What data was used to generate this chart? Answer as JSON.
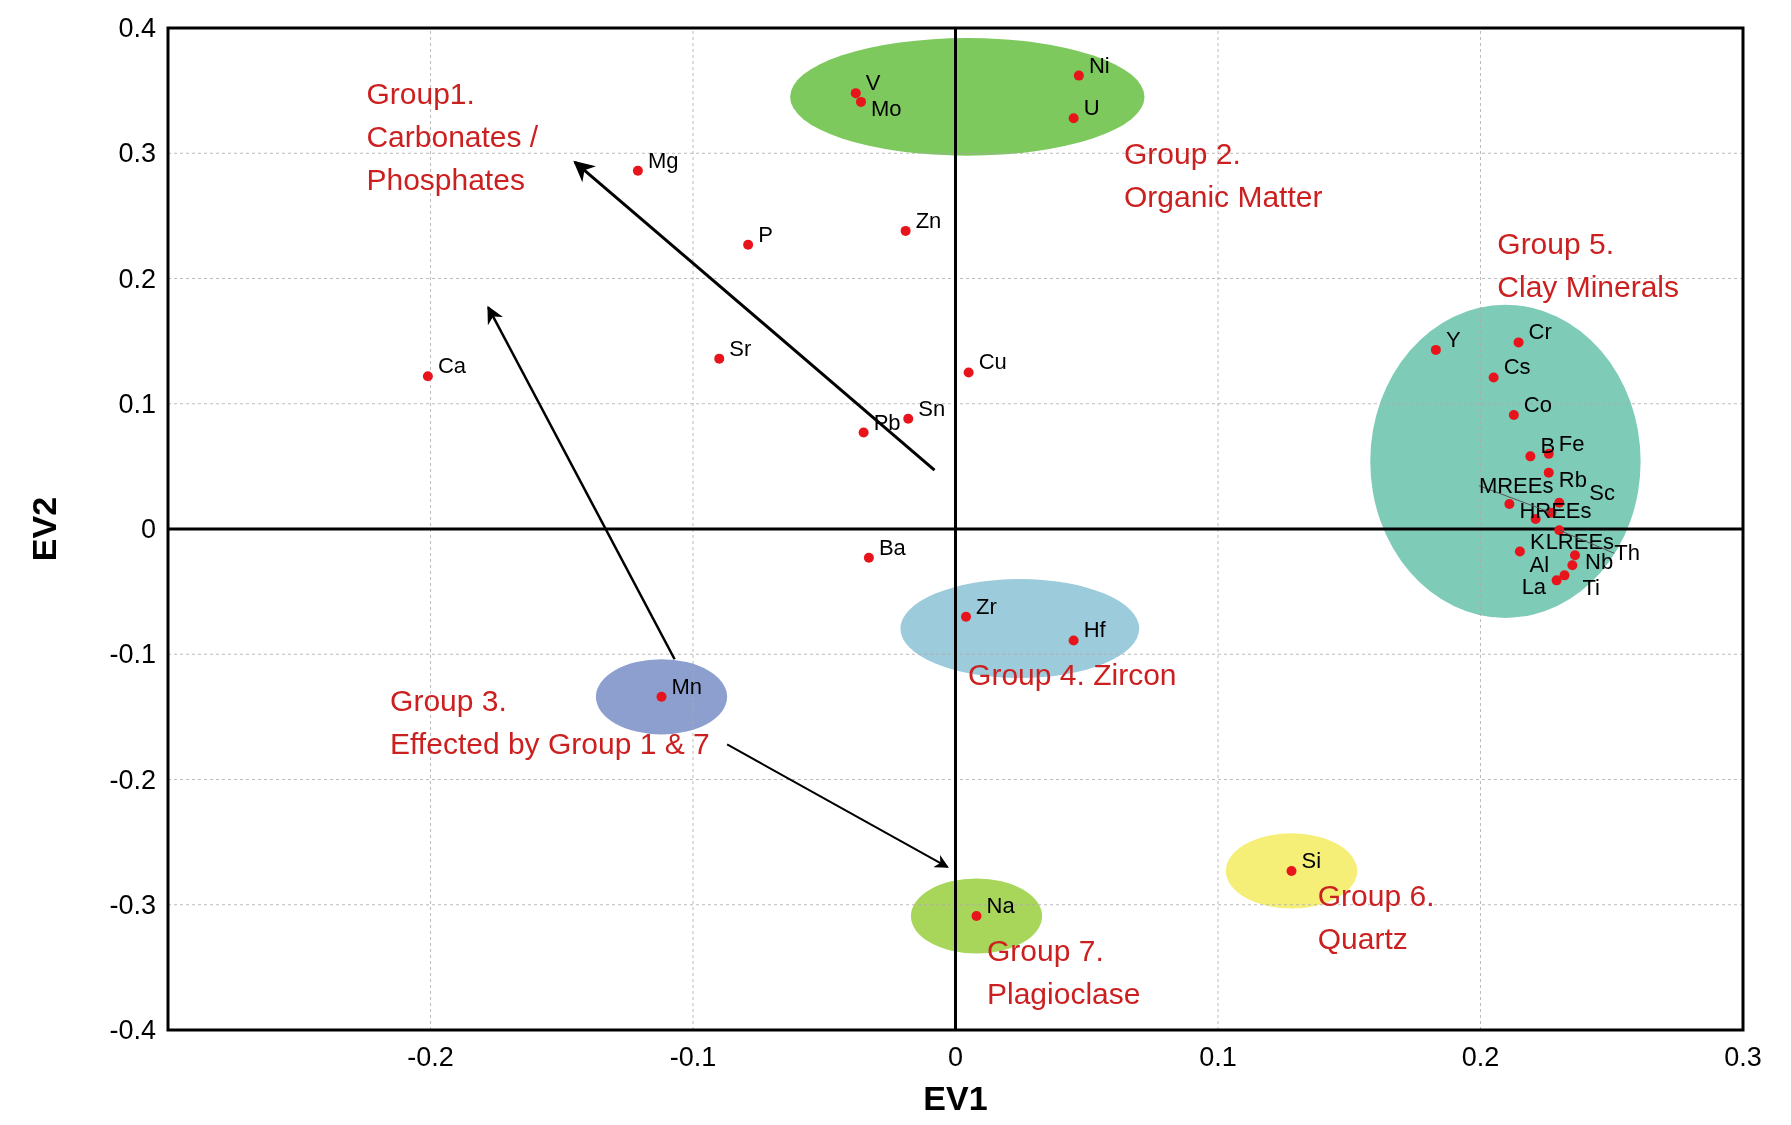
{
  "chart_data": {
    "type": "scatter",
    "xlabel": "EV1",
    "ylabel": "EV2",
    "xlim": [
      -0.3,
      0.3
    ],
    "ylim": [
      -0.4,
      0.4
    ],
    "xticks": [
      {
        "value": -0.3,
        "label": null
      },
      -0.2,
      -0.1,
      0,
      0.1,
      0.2,
      0.3
    ],
    "yticks": [
      -0.4,
      -0.3,
      -0.2,
      -0.1,
      0,
      0.1,
      0.2,
      0.3,
      0.4
    ],
    "grid": true,
    "marker": "circle",
    "series": [
      {
        "color": "#e8141c",
        "x": [
          -0.121,
          -0.079,
          -0.09,
          -0.201,
          -0.019,
          0.005,
          -0.035,
          -0.018,
          -0.033
        ],
        "values": [
          0.286,
          0.227,
          0.136,
          0.122,
          0.238,
          0.125,
          0.077,
          0.088,
          -0.023
        ]
      },
      {
        "color": "#e8141c",
        "x": [
          -0.038,
          -0.036,
          0.047,
          0.045
        ],
        "values": [
          0.348,
          0.341,
          0.362,
          0.328
        ]
      },
      {
        "color": "#e8141c",
        "x": [
          0.004,
          0.045
        ],
        "values": [
          -0.07,
          -0.089
        ]
      },
      {
        "color": "#e8141c",
        "x": [
          -0.112
        ],
        "values": [
          -0.134
        ]
      },
      {
        "color": "#e8141c",
        "x": [
          0.008
        ],
        "values": [
          -0.309
        ]
      },
      {
        "color": "#e8141c",
        "x": [
          0.128
        ],
        "values": [
          -0.273
        ]
      },
      {
        "color": "#e8141c",
        "x": [
          0.183,
          0.2145,
          0.205,
          0.2127,
          0.219,
          0.226,
          0.226,
          0.211,
          0.23,
          0.227,
          0.221,
          0.23,
          0.215,
          0.236,
          0.235,
          0.232,
          0.229
        ],
        "values": [
          0.143,
          0.149,
          0.121,
          0.091,
          0.058,
          0.06,
          0.045,
          0.02,
          0.021,
          0.013,
          0.008,
          -0.001,
          -0.018,
          -0.021,
          -0.029,
          -0.037,
          -0.041
        ]
      }
    ],
    "annotations": [
      {
        "text": "Mg",
        "x": -0.121,
        "y": 0.286
      },
      {
        "text": "P",
        "x": -0.079,
        "y": 0.227
      },
      {
        "text": "Sr",
        "x": -0.09,
        "y": 0.136
      },
      {
        "text": "Ca",
        "x": -0.201,
        "y": 0.122
      },
      {
        "text": "Zn",
        "x": -0.019,
        "y": 0.238
      },
      {
        "text": "Cu",
        "x": 0.005,
        "y": 0.125
      },
      {
        "text": "Pb",
        "x": -0.035,
        "y": 0.077
      },
      {
        "text": "Sn",
        "x": -0.018,
        "y": 0.088
      },
      {
        "text": "Ba",
        "x": -0.033,
        "y": -0.023
      },
      {
        "text": "V",
        "x": -0.038,
        "y": 0.348
      },
      {
        "text": "Mo",
        "x": -0.036,
        "y": 0.341
      },
      {
        "text": "Ni",
        "x": 0.047,
        "y": 0.362
      },
      {
        "text": "U",
        "x": 0.045,
        "y": 0.328
      },
      {
        "text": "Zr",
        "x": 0.004,
        "y": -0.07
      },
      {
        "text": "Hf",
        "x": 0.045,
        "y": -0.089
      },
      {
        "text": "Mn",
        "x": -0.112,
        "y": -0.134
      },
      {
        "text": "Na",
        "x": 0.008,
        "y": -0.309
      },
      {
        "text": "Si",
        "x": 0.128,
        "y": -0.273
      },
      {
        "text": "Y",
        "x": 0.183,
        "y": 0.143
      },
      {
        "text": "Cr",
        "x": 0.2145,
        "y": 0.149
      },
      {
        "text": "Cs",
        "x": 0.205,
        "y": 0.121
      },
      {
        "text": "Co",
        "x": 0.2127,
        "y": 0.091
      },
      {
        "text": "B",
        "x": 0.219,
        "y": 0.058
      },
      {
        "text": "Fe",
        "x": 0.226,
        "y": 0.06
      },
      {
        "text": "Rb",
        "x": 0.226,
        "y": 0.045
      },
      {
        "text": "HREEs",
        "x": 0.211,
        "y": 0.02
      },
      {
        "text": "Sc",
        "x": 0.23,
        "y": 0.021
      },
      {
        "text": "MREEs",
        "x": 0.227,
        "y": 0.013
      },
      {
        "text": "LREEs",
        "x": 0.221,
        "y": 0.008
      },
      {
        "text": "Th",
        "x": 0.23,
        "y": -0.001
      },
      {
        "text": "K",
        "x": 0.215,
        "y": -0.018
      },
      {
        "text": "Nb",
        "x": 0.236,
        "y": -0.021
      },
      {
        "text": "Ti",
        "x": 0.235,
        "y": -0.029
      },
      {
        "text": "Al",
        "x": 0.232,
        "y": -0.037
      },
      {
        "text": "La",
        "x": 0.229,
        "y": -0.041
      },
      "Group1.\nCarbonates /\nPhosphates",
      "Group 2.\nOrganic Matter",
      "Group 3.\nEffected by Group 1 & 7",
      "Group 4. Zircon",
      "Group 5.\nClay Minerals",
      "Group 6.\nQuartz",
      "Group 7.\nPlagioclase"
    ]
  }
}
